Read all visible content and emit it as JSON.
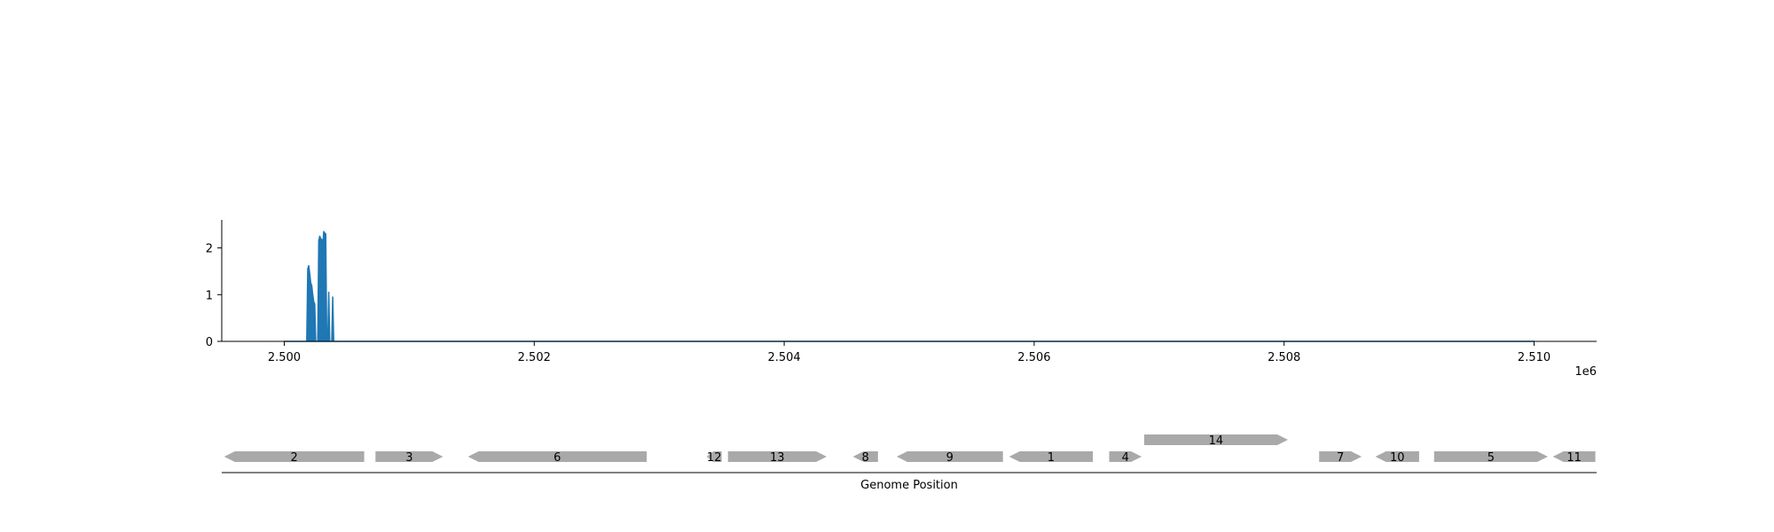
{
  "chart_data": [
    {
      "type": "area",
      "x_scale_label": "1e6",
      "xlim": [
        2499500,
        2510500
      ],
      "ylim": [
        0,
        2.6
      ],
      "x_ticks": [
        {
          "value": 2500000,
          "label": "2.500"
        },
        {
          "value": 2502000,
          "label": "2.502"
        },
        {
          "value": 2504000,
          "label": "2.504"
        },
        {
          "value": 2506000,
          "label": "2.506"
        },
        {
          "value": 2508000,
          "label": "2.508"
        },
        {
          "value": 2510000,
          "label": "2.510"
        }
      ],
      "y_ticks": [
        {
          "value": 0,
          "label": "0"
        },
        {
          "value": 1,
          "label": "1"
        },
        {
          "value": 2,
          "label": "2"
        }
      ],
      "color": "#1f77b4",
      "series": [
        {
          "x": [
            2500000,
            2500180,
            2500188,
            2500196,
            2500204,
            2500212,
            2500220,
            2500228,
            2500236,
            2500244,
            2500252,
            2500260,
            2500268,
            2500276,
            2500284,
            2500292,
            2500300,
            2500308,
            2500316,
            2500324,
            2500332,
            2500340,
            2500348,
            2500356,
            2500364,
            2500372,
            2500380,
            2500388,
            2500396,
            2500404,
            2500412,
            2500420,
            2500428,
            2500436,
            2500444,
            2500452,
            2500460,
            2500468,
            2500476,
            2500484,
            2500492,
            2500500,
            2500508,
            2510000
          ],
          "y": [
            0,
            0,
            1.55,
            1.62,
            1.45,
            1.25,
            1.2,
            1.0,
            0.85,
            0.8,
            0,
            0,
            0,
            2.15,
            2.25,
            2.2,
            2.18,
            2.05,
            2.35,
            2.32,
            2.3,
            0,
            0,
            1.05,
            0,
            0,
            0,
            0.95,
            0,
            0,
            0,
            0,
            0,
            0,
            0,
            0,
            0,
            0,
            0,
            0,
            0,
            0,
            0,
            0
          ]
        }
      ]
    },
    {
      "type": "gene-map",
      "xlabel": "Genome Position",
      "xlim": [
        2499500,
        2510500
      ],
      "color": "#a9a9a9",
      "genes": [
        {
          "label": "2",
          "start": 2499520,
          "end": 2500640,
          "strand": -1,
          "row": 0
        },
        {
          "label": "3",
          "start": 2500730,
          "end": 2501270,
          "strand": 1,
          "row": 0
        },
        {
          "label": "6",
          "start": 2501470,
          "end": 2502900,
          "strand": -1,
          "row": 0
        },
        {
          "label": "12",
          "start": 2503380,
          "end": 2503500,
          "strand": -1,
          "row": 0
        },
        {
          "label": "13",
          "start": 2503550,
          "end": 2504340,
          "strand": 1,
          "row": 0
        },
        {
          "label": "8",
          "start": 2504550,
          "end": 2504750,
          "strand": -1,
          "row": 0
        },
        {
          "label": "9",
          "start": 2504900,
          "end": 2505750,
          "strand": -1,
          "row": 0
        },
        {
          "label": "1",
          "start": 2505800,
          "end": 2506470,
          "strand": -1,
          "row": 0
        },
        {
          "label": "4",
          "start": 2506600,
          "end": 2506860,
          "strand": 1,
          "row": 0
        },
        {
          "label": "14",
          "start": 2506880,
          "end": 2508030,
          "strand": 1,
          "row": 1
        },
        {
          "label": "7",
          "start": 2508280,
          "end": 2508620,
          "strand": 1,
          "row": 0
        },
        {
          "label": "10",
          "start": 2508730,
          "end": 2509080,
          "strand": -1,
          "row": 0
        },
        {
          "label": "5",
          "start": 2509200,
          "end": 2510110,
          "strand": 1,
          "row": 0
        },
        {
          "label": "11",
          "start": 2510150,
          "end": 2510490,
          "strand": -1,
          "row": 0
        }
      ]
    }
  ]
}
